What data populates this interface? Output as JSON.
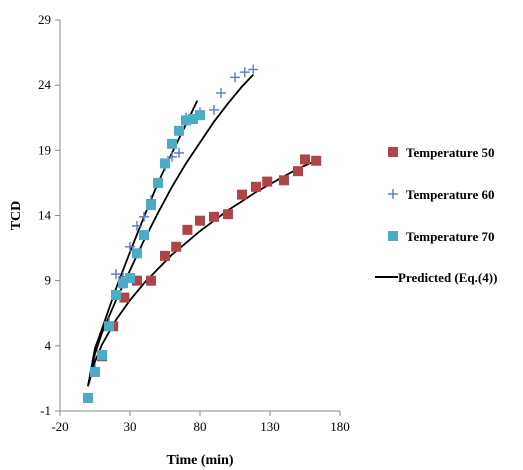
{
  "chart_data": {
    "type": "scatter",
    "xlabel": "Time (min)",
    "ylabel": "TCD",
    "xlim": [
      -20,
      180
    ],
    "ylim": [
      -1,
      29
    ],
    "xticks": [
      -20,
      30,
      80,
      130,
      180
    ],
    "yticks": [
      -1,
      4,
      9,
      14,
      19,
      24,
      29
    ],
    "grid": false,
    "legend_position": "right",
    "series": [
      {
        "name": "Temperature 50",
        "marker": "square",
        "color": "#b04545",
        "x": [
          0,
          5,
          10,
          18,
          26,
          35,
          45,
          55,
          63,
          71,
          80,
          90,
          100,
          110,
          120,
          128,
          140,
          150,
          155,
          163
        ],
        "y": [
          0,
          2,
          3.2,
          5.5,
          7.7,
          9,
          9,
          10.9,
          11.6,
          12.9,
          13.6,
          13.9,
          14.1,
          15.6,
          16.2,
          16.6,
          16.7,
          17.4,
          18.3,
          18.2
        ]
      },
      {
        "name": "Temperature 60",
        "marker": "plus",
        "color": "#5b7bbd",
        "x": [
          0,
          5,
          10,
          15,
          20,
          25,
          30,
          35,
          40,
          45,
          55,
          60,
          65,
          70,
          80,
          90,
          95,
          105,
          112,
          118
        ],
        "y": [
          0,
          2.2,
          3.2,
          5.8,
          9.5,
          9.3,
          11.6,
          13.2,
          13.9,
          15.2,
          17.8,
          18.5,
          18.8,
          21.5,
          21.9,
          22.1,
          23.4,
          24.6,
          25,
          25.2
        ]
      },
      {
        "name": "Temperature 70",
        "marker": "square",
        "color": "#4bacc6",
        "x": [
          0,
          5,
          10,
          15,
          20,
          25,
          30,
          35,
          40,
          45,
          50,
          55,
          60,
          65,
          70,
          75,
          80
        ],
        "y": [
          0,
          2,
          3.3,
          5.5,
          7.9,
          8.8,
          9.2,
          11.1,
          12.5,
          14.8,
          16.5,
          18,
          19.5,
          20.5,
          21.3,
          21.4,
          21.7
        ]
      }
    ],
    "predicted": {
      "name": "Predicted (Eq.(4))",
      "color": "#000000",
      "curves": [
        {
          "x": [
            0,
            5,
            10,
            20,
            30,
            40,
            50,
            60,
            70,
            80,
            90,
            100,
            110,
            120,
            130,
            140,
            150,
            163
          ],
          "y": [
            0.9,
            2.8,
            4.1,
            6.0,
            7.5,
            8.8,
            9.9,
            11.0,
            11.9,
            12.8,
            13.6,
            14.4,
            15.1,
            15.8,
            16.4,
            17.0,
            17.6,
            18.2
          ]
        },
        {
          "x": [
            0,
            5,
            10,
            20,
            30,
            40,
            50,
            60,
            70,
            80,
            90,
            100,
            110,
            118
          ],
          "y": [
            0.9,
            3.4,
            5.0,
            7.5,
            9.8,
            12.1,
            14.2,
            16.2,
            18.0,
            19.6,
            21.2,
            22.6,
            23.9,
            24.8
          ]
        },
        {
          "x": [
            0,
            5,
            10,
            20,
            30,
            40,
            50,
            60,
            70,
            78
          ],
          "y": [
            0.9,
            3.8,
            5.3,
            8.4,
            11.2,
            13.9,
            16.5,
            18.8,
            21.0,
            22.8
          ]
        }
      ]
    }
  }
}
